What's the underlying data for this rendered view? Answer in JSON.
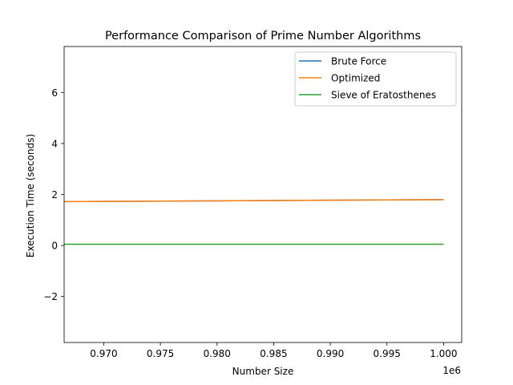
{
  "chart_data": {
    "type": "line",
    "title": "Performance Comparison of Prime Number Algorithms",
    "xlabel": "Number Size",
    "ylabel": "Execution Time (seconds)",
    "x_offset_label": "1e6",
    "xlim": [
      966500,
      1001600
    ],
    "ylim": [
      -3.8,
      7.8
    ],
    "x_ticks": [
      {
        "value": 970000,
        "label": "0.970"
      },
      {
        "value": 975000,
        "label": "0.975"
      },
      {
        "value": 980000,
        "label": "0.980"
      },
      {
        "value": 985000,
        "label": "0.985"
      },
      {
        "value": 990000,
        "label": "0.990"
      },
      {
        "value": 995000,
        "label": "0.995"
      },
      {
        "value": 1000000,
        "label": "1.000"
      }
    ],
    "y_ticks": [
      {
        "value": -2,
        "label": "−2"
      },
      {
        "value": 0,
        "label": "0"
      },
      {
        "value": 2,
        "label": "2"
      },
      {
        "value": 4,
        "label": "4"
      },
      {
        "value": 6,
        "label": "6"
      }
    ],
    "grid": false,
    "legend_position": "top-right",
    "series": [
      {
        "name": "Brute Force",
        "color": "#1f77b4",
        "x": [
          966500,
          1000000
        ],
        "y": [
          1.72,
          1.8
        ]
      },
      {
        "name": "Optimized",
        "color": "#ff7f0e",
        "x": [
          966500,
          1000000
        ],
        "y": [
          1.72,
          1.8
        ]
      },
      {
        "name": "Sieve of Eratosthenes",
        "color": "#2ca02c",
        "x": [
          966500,
          1000000
        ],
        "y": [
          0.05,
          0.05
        ]
      }
    ]
  }
}
